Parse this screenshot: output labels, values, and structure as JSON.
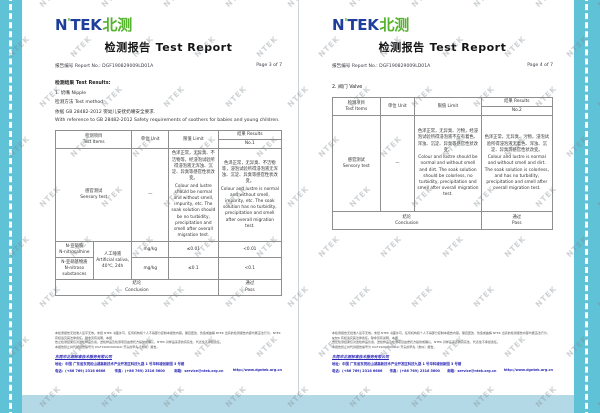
{
  "watermark": {
    "text": "NTEK"
  },
  "logo": {
    "n": "N",
    "tick": "'",
    "tek": "TEK",
    "cn": "北测"
  },
  "title": {
    "cn": "检测报告",
    "en": "Test Report"
  },
  "report_no_label": "报告编号 Report No.:",
  "report_no": "DGF190829009LD01A",
  "left_page": {
    "page_label": "Page 3 of 7",
    "results_heading": "检测结果 Test Results:",
    "sample_item": "1. 奶嘴 Nipple",
    "method_label": "检测方法 Test method:",
    "method_cn": "依据 GB 28482-2012 婴幼儿安抚奶嘴安全要求.",
    "method_en": "With reference to GB 28482-2012 Safety requirements of soothers for babies and young children.",
    "table": {
      "header_items": "检测项目\nTest Items",
      "header_unit": "单位 Unit",
      "header_limit": "限值 Limit",
      "header_results": "结果 Results",
      "header_sample_no": "No.1",
      "rows": {
        "sensory": {
          "item": "感官测试\nSensory test",
          "unit": "—",
          "limit_cn": "色泽正常，无异臭、不洁物等，经浸泡试验所得浸泡液无浑浊、沉淀、异臭等感官性状改变。",
          "limit_en": "Colour and lustre should be normal and without smell, impurity, etc. The soak solution should be no turbidity, precipitation and smell after overall migration test.",
          "result_cn": "色泽正常，无异臭、不洁物等，浸泡试验所得浸泡液无浑浊、沉淀、异臭等感官性状改变。",
          "result_en": "Colour and lustre is normal and without smell, impurity, etc. The soak solution has no turbidity, precipitation and smell after overall migration test."
        },
        "nitrosamine": {
          "item": "N-亚硝胺\nN-nitrosamine",
          "condition": "人工唾液\nArtificial saliva,\n40℃, 24h",
          "unit": "mg/kg",
          "limit": "≤0.01",
          "result": "<0.01"
        },
        "nitroso": {
          "item": "N-亚硝基物质\nN-nitroso\nsubstances",
          "unit": "mg/kg",
          "limit": "≤0.1",
          "result": "<0.1"
        }
      },
      "conclusion_label": "结论\nConclusion",
      "conclusion_value": "通过\nPass"
    }
  },
  "right_page": {
    "page_label": "Page 4 of 7",
    "sample_item": "2. 阀门 Valve",
    "table": {
      "header_items": "检测项目\nTest Items",
      "header_unit": "单位 Unit",
      "header_limit": "限值 Limit",
      "header_results": "结果 Results",
      "header_sample_no": "No.2",
      "rows": {
        "sensory": {
          "item": "感官测试\nSensory test",
          "unit": "—",
          "limit_cn": "色泽正常，无异臭、污物，经浸泡试验所得浸泡液不应有着色、浑浊、沉淀、异臭等感官性状改变。",
          "limit_en": "Colour and lustre should be normal and without smell and dirt. The soak solution should be colorless, no turbidity, precipitation and smell after overall migration test.",
          "result_cn": "色泽正常，无异臭、污物，浸泡试验所得浸泡液无着色、浑浊、沉淀、异臭等感官性状改变。",
          "result_en": "Colour and lustre is normal and without smell and dirt. The soak solution is colorless, and has no turbidity, precipitation and smell after overall migration test."
        }
      },
      "conclusion_label": "结论\nConclusion",
      "conclusion_value": "通过\nPass"
    }
  },
  "footer": {
    "disclaimer_lines": [
      "本检测报告无批准人签字无效。未经 NTEK 书面许可，任何机构和个人不得部分复制本报告内容。擅自更改、伪造或曲解 NTEK 出具的检测报告内容均属违法行为，NTEK 有权追究其法律责任。除非另有说明，本报",
      "告之检测结果仅对送检样品负责，送检样品及检测项目由委托方提供或确认，NTEK 对样品来源的真实性、代表性不承担责任。",
      "本报告终止并代替报告编号为 DGF190829009LD 开头的早先（类似）报告。"
    ],
    "company": "东莞市北测标准技术服务有限公司",
    "address": "地址：中国 广东省东莞松山湖高新技术产业开发区科技九路 1 号华科城创新园 3 号楼",
    "contact_phone": "电话：(+86 769) 2316 6666",
    "contact_fax": "传真：(+86 769) 2316 5600",
    "contact_email": "邮箱：service@ntek.org.cn",
    "website": "http://www.dgntek.org.cn"
  }
}
